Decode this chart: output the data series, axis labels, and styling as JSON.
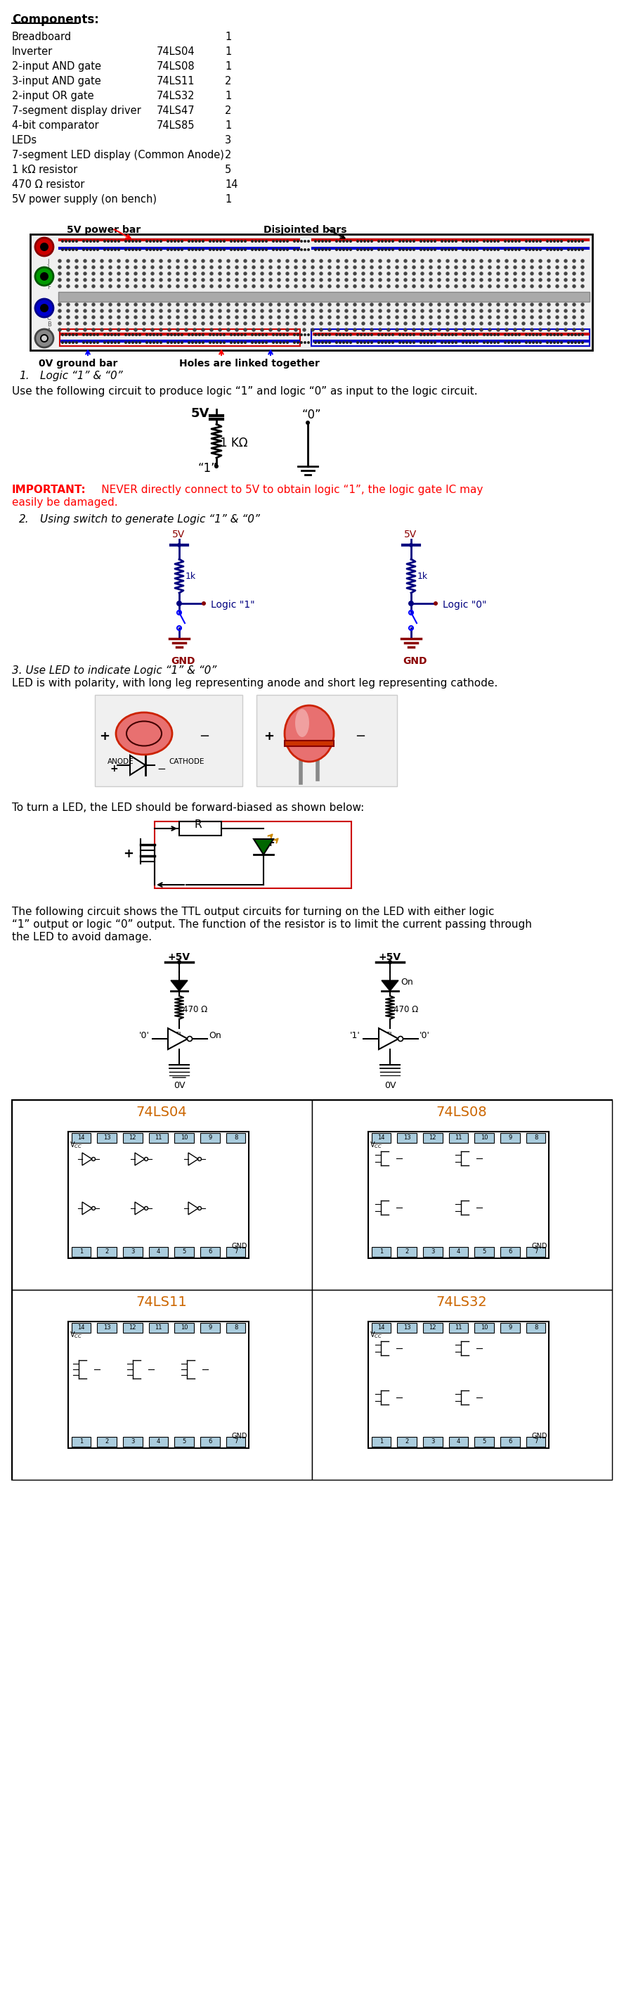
{
  "bg_color": "#ffffff",
  "components": [
    [
      "Breadboard",
      "",
      "1"
    ],
    [
      "Inverter",
      "74LS04",
      "1"
    ],
    [
      "2-input AND gate",
      "74LS08",
      "1"
    ],
    [
      "3-input AND gate",
      "74LS11",
      "2"
    ],
    [
      "2-input OR gate",
      "74LS32",
      "1"
    ],
    [
      "7-segment display driver",
      "74LS47",
      "2"
    ],
    [
      "4-bit comparator",
      "74LS85",
      "1"
    ],
    [
      "LEDs",
      "",
      "3"
    ],
    [
      "7-segment LED display (Common Anode)",
      "",
      "2"
    ],
    [
      "1 kΩ resistor",
      "",
      "5"
    ],
    [
      "470 Ω resistor",
      "",
      "14"
    ],
    [
      "5V power supply (on bench)",
      "",
      "1"
    ]
  ],
  "ic_labels": [
    "74LS04",
    "74LS08",
    "74LS11",
    "74LS32"
  ],
  "navy": "#00008B",
  "darkred": "#8B0000",
  "red_text": "#cc0000"
}
